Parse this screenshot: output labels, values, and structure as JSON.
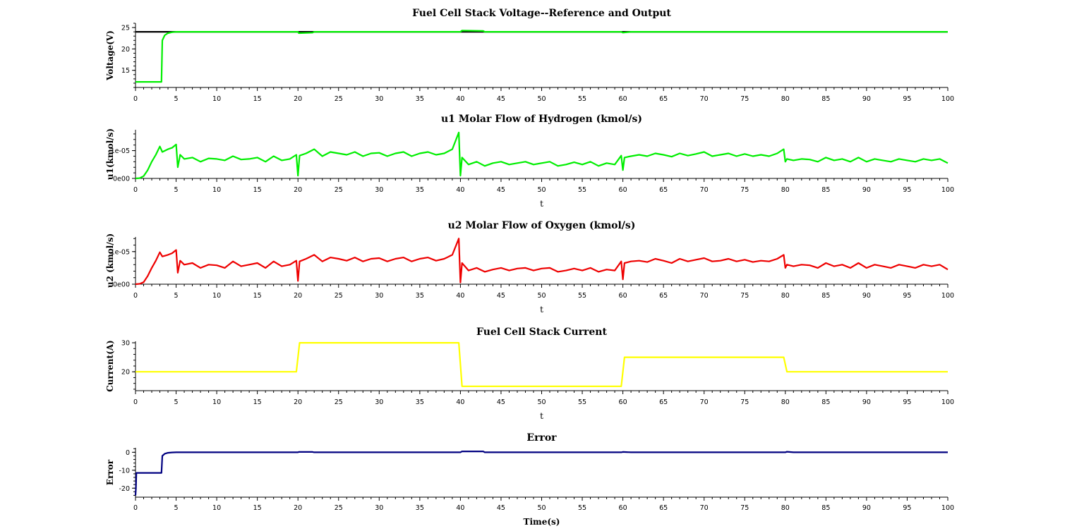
{
  "chart_data": [
    {
      "type": "line",
      "title": "Fuel Cell Stack Voltage--Reference and Output",
      "xlabel": "",
      "ylabel": "Voltage(V)",
      "xlim": [
        0,
        100
      ],
      "ylim": [
        11,
        26
      ],
      "xticks": [
        "0",
        "5",
        "10",
        "15",
        "20",
        "25",
        "30",
        "35",
        "40",
        "45",
        "50",
        "55",
        "60",
        "65",
        "70",
        "75",
        "80",
        "85",
        "90",
        "95",
        "100"
      ],
      "yticks": [
        {
          "value": 15,
          "label": "15"
        },
        {
          "value": 20,
          "label": "20"
        },
        {
          "value": 25,
          "label": "25"
        }
      ],
      "grid": false,
      "series": [
        {
          "color": "#000000",
          "x": [
            0,
            4.8,
            4.8,
            100
          ],
          "y": [
            24,
            24,
            24,
            24
          ]
        },
        {
          "color": "#00ee00",
          "x": [
            0,
            3.2,
            3.3,
            3.6,
            4.0,
            4.5,
            5,
            20,
            20.1,
            21.8,
            22,
            40,
            40.2,
            42.8,
            43,
            59.8,
            60,
            61,
            100
          ],
          "y": [
            12.3,
            12.3,
            22,
            23.2,
            23.7,
            23.9,
            24,
            24,
            23.7,
            23.8,
            24,
            24,
            24.3,
            24.2,
            24,
            24,
            23.8,
            24,
            24
          ]
        }
      ]
    },
    {
      "type": "line",
      "title": "u1 Molar Flow of Hydrogen (kmol/s)",
      "xlabel": "t",
      "ylabel": "u1(kmol/s)",
      "xlim": [
        0,
        100
      ],
      "ylim": [
        0,
        1.75e-05
      ],
      "xticks": [
        "0",
        "5",
        "10",
        "15",
        "20",
        "25",
        "30",
        "35",
        "40",
        "45",
        "50",
        "55",
        "60",
        "65",
        "70",
        "75",
        "80",
        "85",
        "90",
        "95",
        "100"
      ],
      "yticks": [
        {
          "value": 0,
          "label": "0e00"
        },
        {
          "value": 1e-05,
          "label": "1e-05"
        }
      ],
      "grid": false,
      "series": [
        {
          "color": "#00ee00",
          "x": [
            0,
            0.5,
            1,
            1.5,
            2,
            2.5,
            3,
            3.3,
            4,
            4.5,
            5,
            5.2,
            5.5,
            6,
            7,
            8,
            9,
            10,
            11,
            12,
            13,
            14,
            15,
            16,
            17,
            18,
            19,
            19.8,
            20,
            20.2,
            21,
            22,
            23,
            24,
            25,
            26,
            27,
            28,
            29,
            30,
            31,
            32,
            33,
            34,
            35,
            36,
            37,
            38,
            39,
            39.8,
            40,
            40.2,
            41,
            42,
            43,
            44,
            45,
            46,
            47,
            48,
            49,
            50,
            51,
            52,
            53,
            54,
            55,
            56,
            57,
            58,
            59,
            59.8,
            60,
            60.2,
            61,
            62,
            63,
            64,
            65,
            66,
            67,
            68,
            69,
            70,
            71,
            72,
            73,
            74,
            75,
            76,
            77,
            78,
            79,
            79.8,
            80,
            80.2,
            81,
            82,
            83,
            84,
            85,
            86,
            87,
            88,
            89,
            90,
            91,
            92,
            93,
            94,
            95,
            96,
            97,
            98,
            99,
            100
          ],
          "y": [
            0,
            1e-07,
            8e-07,
            3e-06,
            6e-06,
            8.5e-06,
            1.15e-05,
            9.5e-06,
            1.05e-05,
            1.1e-05,
            1.22e-05,
            4e-06,
            8.5e-06,
            7e-06,
            7.5e-06,
            6e-06,
            7.2e-06,
            7e-06,
            6.5e-06,
            8e-06,
            6.8e-06,
            7e-06,
            7.5e-06,
            6e-06,
            8e-06,
            6.5e-06,
            7e-06,
            8.5e-06,
            1e-06,
            8.2e-06,
            9e-06,
            1.05e-05,
            8e-06,
            9.5e-06,
            9e-06,
            8.5e-06,
            9.5e-06,
            8e-06,
            9e-06,
            9.2e-06,
            8e-06,
            9e-06,
            9.5e-06,
            8e-06,
            9e-06,
            9.5e-06,
            8.5e-06,
            9e-06,
            1.05e-05,
            1.65e-05,
            1e-06,
            7.5e-06,
            5e-06,
            6e-06,
            4.5e-06,
            5.5e-06,
            6e-06,
            5e-06,
            5.5e-06,
            6e-06,
            5e-06,
            5.5e-06,
            6e-06,
            4.5e-06,
            5e-06,
            5.8e-06,
            5e-06,
            6e-06,
            4.5e-06,
            5.5e-06,
            5e-06,
            8.2e-06,
            3e-06,
            7.5e-06,
            8e-06,
            8.5e-06,
            8e-06,
            9e-06,
            8.5e-06,
            7.8e-06,
            9e-06,
            8.2e-06,
            8.8e-06,
            9.5e-06,
            8e-06,
            8.5e-06,
            9e-06,
            8e-06,
            8.8e-06,
            8e-06,
            8.5e-06,
            8e-06,
            9e-06,
            1.05e-05,
            6e-06,
            7e-06,
            6.5e-06,
            7e-06,
            6.8e-06,
            6e-06,
            7.5e-06,
            6.5e-06,
            7e-06,
            6e-06,
            7.5e-06,
            6e-06,
            7e-06,
            6.5e-06,
            6e-06,
            7e-06,
            6.5e-06,
            6e-06,
            7e-06,
            6.5e-06,
            7e-06,
            5.5e-06
          ]
        }
      ]
    },
    {
      "type": "line",
      "title": "u2 Molar Flow of Oxygen (kmol/s)",
      "xlabel": "t",
      "ylabel": "u2 (kmol/s)",
      "xlim": [
        0,
        100
      ],
      "ylim": [
        0,
        1.45e-05
      ],
      "xticks": [
        "0",
        "5",
        "10",
        "15",
        "20",
        "25",
        "30",
        "35",
        "40",
        "45",
        "50",
        "55",
        "60",
        "65",
        "70",
        "75",
        "80",
        "85",
        "90",
        "95",
        "100"
      ],
      "yticks": [
        {
          "value": 0,
          "label": "0e00"
        },
        {
          "value": 1e-05,
          "label": "1e-05"
        }
      ],
      "grid": false,
      "series": [
        {
          "color": "#ee0000",
          "x": [
            0,
            0.5,
            1,
            1.5,
            2,
            2.5,
            3,
            3.3,
            4,
            4.5,
            5,
            5.2,
            5.5,
            6,
            7,
            8,
            9,
            10,
            11,
            12,
            13,
            14,
            15,
            16,
            17,
            18,
            19,
            19.8,
            20,
            20.2,
            21,
            22,
            23,
            24,
            25,
            26,
            27,
            28,
            29,
            30,
            31,
            32,
            33,
            34,
            35,
            36,
            37,
            38,
            39,
            39.8,
            40,
            40.2,
            41,
            42,
            43,
            44,
            45,
            46,
            47,
            48,
            49,
            50,
            51,
            52,
            53,
            54,
            55,
            56,
            57,
            58,
            59,
            59.8,
            60,
            60.2,
            61,
            62,
            63,
            64,
            65,
            66,
            67,
            68,
            69,
            70,
            71,
            72,
            73,
            74,
            75,
            76,
            77,
            78,
            79,
            79.8,
            80,
            80.2,
            81,
            82,
            83,
            84,
            85,
            86,
            87,
            88,
            89,
            90,
            91,
            92,
            93,
            94,
            95,
            96,
            97,
            98,
            99,
            100
          ],
          "y": [
            0,
            1e-07,
            6e-07,
            2.5e-06,
            5e-06,
            7.2e-06,
            9.8e-06,
            8.5e-06,
            9e-06,
            9.5e-06,
            1.05e-05,
            3.5e-06,
            7.2e-06,
            6e-06,
            6.5e-06,
            5e-06,
            6e-06,
            5.8e-06,
            5e-06,
            7e-06,
            5.5e-06,
            6e-06,
            6.5e-06,
            5e-06,
            7e-06,
            5.5e-06,
            6e-06,
            7.2e-06,
            1e-06,
            7e-06,
            7.8e-06,
            9e-06,
            7e-06,
            8.2e-06,
            7.8e-06,
            7.2e-06,
            8.2e-06,
            7e-06,
            7.8e-06,
            8e-06,
            7e-06,
            7.8e-06,
            8.2e-06,
            7e-06,
            7.8e-06,
            8.2e-06,
            7.2e-06,
            7.8e-06,
            9e-06,
            1.4e-05,
            5e-07,
            6.5e-06,
            4.2e-06,
            5e-06,
            3.8e-06,
            4.5e-06,
            5e-06,
            4.2e-06,
            4.8e-06,
            5e-06,
            4.2e-06,
            4.8e-06,
            5e-06,
            3.8e-06,
            4.2e-06,
            4.8e-06,
            4.2e-06,
            5e-06,
            3.8e-06,
            4.5e-06,
            4.2e-06,
            7e-06,
            1.5e-06,
            6.5e-06,
            7e-06,
            7.2e-06,
            6.8e-06,
            7.8e-06,
            7.2e-06,
            6.5e-06,
            7.8e-06,
            7e-06,
            7.5e-06,
            8e-06,
            7e-06,
            7.2e-06,
            7.8e-06,
            7e-06,
            7.5e-06,
            6.8e-06,
            7.2e-06,
            7e-06,
            7.8e-06,
            9e-06,
            5e-06,
            6e-06,
            5.5e-06,
            6e-06,
            5.8e-06,
            5e-06,
            6.5e-06,
            5.5e-06,
            6e-06,
            5e-06,
            6.5e-06,
            5e-06,
            6e-06,
            5.5e-06,
            5e-06,
            6e-06,
            5.5e-06,
            5e-06,
            6e-06,
            5.5e-06,
            6e-06,
            4.5e-06
          ]
        }
      ]
    },
    {
      "type": "line",
      "title": "Fuel Cell Stack Current",
      "xlabel": "t",
      "ylabel": "Current(A)",
      "xlim": [
        0,
        100
      ],
      "ylim": [
        13.5,
        30.5
      ],
      "xticks": [
        "0",
        "5",
        "10",
        "15",
        "20",
        "25",
        "30",
        "35",
        "40",
        "45",
        "50",
        "55",
        "60",
        "65",
        "70",
        "75",
        "80",
        "85",
        "90",
        "95",
        "100"
      ],
      "yticks": [
        {
          "value": 20,
          "label": "20"
        },
        {
          "value": 30,
          "label": "30"
        }
      ],
      "grid": false,
      "series": [
        {
          "color": "#ffff00",
          "x": [
            0,
            19.8,
            20.2,
            39.8,
            40.2,
            59.8,
            60.2,
            79.8,
            80.2,
            100
          ],
          "y": [
            20,
            20,
            30,
            30,
            15,
            15,
            25,
            25,
            20,
            20
          ]
        }
      ]
    },
    {
      "type": "line",
      "title": "Error",
      "xlabel": "Time(s)",
      "ylabel": "Error",
      "xlim": [
        0,
        100
      ],
      "ylim": [
        -25,
        2.5
      ],
      "xticks": [
        "0",
        "5",
        "10",
        "15",
        "20",
        "25",
        "30",
        "35",
        "40",
        "45",
        "50",
        "55",
        "60",
        "65",
        "70",
        "75",
        "80",
        "85",
        "90",
        "95",
        "100"
      ],
      "yticks": [
        {
          "value": -20,
          "label": "-20"
        },
        {
          "value": -10,
          "label": "-10"
        },
        {
          "value": 0,
          "label": "0"
        }
      ],
      "grid": false,
      "series": [
        {
          "color": "#000080",
          "x": [
            0,
            0.05,
            0.1,
            0.3,
            3.2,
            3.3,
            3.6,
            4.0,
            4.5,
            5,
            20,
            20.1,
            21.8,
            22,
            40,
            40.2,
            42.8,
            43,
            59.8,
            60,
            61,
            80,
            80.2,
            81,
            100
          ],
          "y": [
            -24,
            -20,
            -11.5,
            -11.5,
            -11.5,
            -2,
            -0.8,
            -0.3,
            -0.1,
            0,
            0,
            0.2,
            0.2,
            0,
            0,
            0.5,
            0.5,
            0,
            0,
            0.2,
            0,
            0,
            0.3,
            0,
            0
          ]
        }
      ]
    }
  ]
}
